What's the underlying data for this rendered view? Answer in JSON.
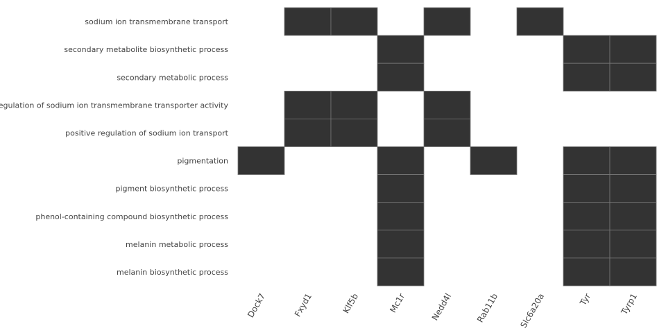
{
  "chart_data": {
    "type": "heatmap",
    "title": "",
    "xlabel": "",
    "ylabel": "",
    "genes": [
      "Dock7",
      "Fxyd1",
      "Klf5b",
      "Mc1r",
      "Nedd4l",
      "Rab11b",
      "Slc6a20a",
      "Tyr",
      "Tyrp1"
    ],
    "terms": [
      "sodium ion transmembrane transport",
      "secondary metabolite biosynthetic process",
      "secondary metabolic process",
      "regulation of sodium ion transmembrane transporter activity",
      "positive regulation of sodium ion transport",
      "pigmentation",
      "pigment biosynthetic process",
      "phenol-containing compound biosynthetic process",
      "melanin metabolic process",
      "melanin biosynthetic process"
    ],
    "matrix": [
      [
        0,
        1,
        1,
        0,
        1,
        0,
        1,
        0,
        0
      ],
      [
        0,
        0,
        0,
        1,
        0,
        0,
        0,
        1,
        1
      ],
      [
        0,
        0,
        0,
        1,
        0,
        0,
        0,
        1,
        1
      ],
      [
        0,
        1,
        1,
        0,
        1,
        0,
        0,
        0,
        0
      ],
      [
        0,
        1,
        1,
        0,
        1,
        0,
        0,
        0,
        0
      ],
      [
        1,
        0,
        0,
        1,
        0,
        1,
        0,
        1,
        1
      ],
      [
        0,
        0,
        0,
        1,
        0,
        0,
        0,
        1,
        1
      ],
      [
        0,
        0,
        0,
        1,
        0,
        0,
        0,
        1,
        1
      ],
      [
        0,
        0,
        0,
        1,
        0,
        0,
        0,
        1,
        1
      ],
      [
        0,
        0,
        0,
        1,
        0,
        0,
        0,
        1,
        1
      ]
    ],
    "grid": false,
    "colors": {
      "filled": "#333333",
      "empty": "#ffffff",
      "cell_border": "#777777"
    }
  }
}
